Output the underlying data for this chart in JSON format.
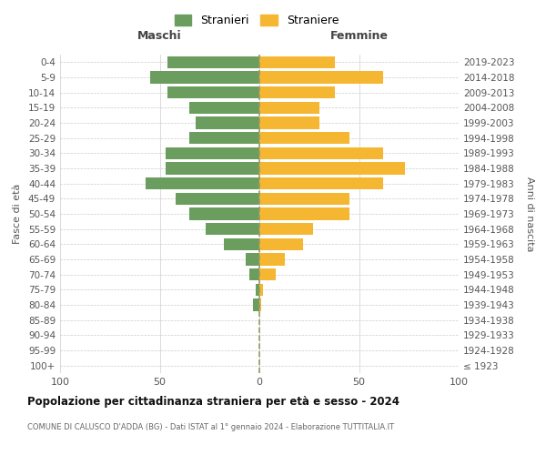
{
  "age_groups": [
    "100+",
    "95-99",
    "90-94",
    "85-89",
    "80-84",
    "75-79",
    "70-74",
    "65-69",
    "60-64",
    "55-59",
    "50-54",
    "45-49",
    "40-44",
    "35-39",
    "30-34",
    "25-29",
    "20-24",
    "15-19",
    "10-14",
    "5-9",
    "0-4"
  ],
  "birth_years": [
    "≤ 1923",
    "1924-1928",
    "1929-1933",
    "1934-1938",
    "1939-1943",
    "1944-1948",
    "1949-1953",
    "1954-1958",
    "1959-1963",
    "1964-1968",
    "1969-1973",
    "1974-1978",
    "1979-1983",
    "1984-1988",
    "1989-1993",
    "1994-1998",
    "1999-2003",
    "2004-2008",
    "2009-2013",
    "2014-2018",
    "2019-2023"
  ],
  "maschi": [
    0,
    0,
    0,
    0,
    3,
    2,
    5,
    7,
    18,
    27,
    35,
    42,
    57,
    47,
    47,
    35,
    32,
    35,
    46,
    55,
    46
  ],
  "femmine": [
    0,
    0,
    0,
    0,
    1,
    2,
    8,
    13,
    22,
    27,
    45,
    45,
    62,
    73,
    62,
    45,
    30,
    30,
    38,
    62,
    38
  ],
  "maschi_color": "#6b9e5e",
  "femmine_color": "#f5b731",
  "background_color": "#ffffff",
  "grid_color": "#cccccc",
  "title": "Popolazione per cittadinanza straniera per età e sesso - 2024",
  "subtitle": "COMUNE DI CALUSCO D'ADDA (BG) - Dati ISTAT al 1° gennaio 2024 - Elaborazione TUTTITALIA.IT",
  "xlabel_left": "Maschi",
  "xlabel_right": "Femmine",
  "ylabel_left": "Fasce di età",
  "ylabel_right": "Anni di nascita",
  "legend_maschi": "Stranieri",
  "legend_femmine": "Straniere",
  "xlim": 100,
  "bar_height": 0.8
}
